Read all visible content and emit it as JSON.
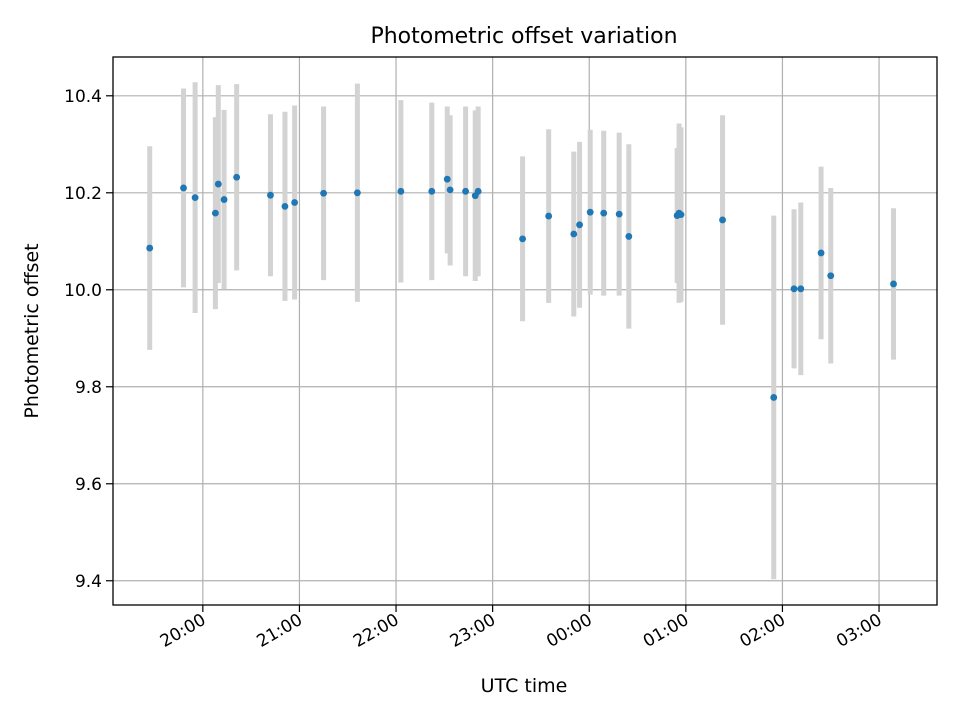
{
  "chart_data": {
    "type": "scatter",
    "title": "Photometric offset variation",
    "xlabel": "UTC time",
    "ylabel": "Photometric offset",
    "x_unit": "UTC time (hours, continuing past midnight)",
    "xlim": [
      19.07,
      27.6
    ],
    "ylim": [
      9.35,
      10.48
    ],
    "grid": true,
    "x_ticks": [
      {
        "value": 20,
        "label": "20:00"
      },
      {
        "value": 21,
        "label": "21:00"
      },
      {
        "value": 22,
        "label": "22:00"
      },
      {
        "value": 23,
        "label": "23:00"
      },
      {
        "value": 24,
        "label": "00:00"
      },
      {
        "value": 25,
        "label": "01:00"
      },
      {
        "value": 26,
        "label": "02:00"
      },
      {
        "value": 27,
        "label": "03:00"
      }
    ],
    "y_ticks": [
      {
        "value": 9.4,
        "label": "9.4"
      },
      {
        "value": 9.6,
        "label": "9.6"
      },
      {
        "value": 9.8,
        "label": "9.8"
      },
      {
        "value": 10.0,
        "label": "10.0"
      },
      {
        "value": 10.2,
        "label": "10.2"
      },
      {
        "value": 10.4,
        "label": "10.4"
      }
    ],
    "colors": {
      "point": "#1f77b4",
      "errorbar": "#d3d3d3",
      "grid": "#b0b0b0"
    },
    "points": [
      {
        "x": 19.45,
        "y": 10.086,
        "lo": 9.876,
        "hi": 10.296
      },
      {
        "x": 19.8,
        "y": 10.21,
        "lo": 10.005,
        "hi": 10.415
      },
      {
        "x": 19.92,
        "y": 10.19,
        "lo": 9.952,
        "hi": 10.428
      },
      {
        "x": 20.13,
        "y": 10.158,
        "lo": 9.96,
        "hi": 10.356
      },
      {
        "x": 20.16,
        "y": 10.218,
        "lo": 10.014,
        "hi": 10.422
      },
      {
        "x": 20.22,
        "y": 10.186,
        "lo": 10.001,
        "hi": 10.371
      },
      {
        "x": 20.35,
        "y": 10.232,
        "lo": 10.04,
        "hi": 10.424
      },
      {
        "x": 20.7,
        "y": 10.195,
        "lo": 10.028,
        "hi": 10.362
      },
      {
        "x": 20.85,
        "y": 10.172,
        "lo": 9.977,
        "hi": 10.367
      },
      {
        "x": 20.95,
        "y": 10.18,
        "lo": 9.98,
        "hi": 10.38
      },
      {
        "x": 21.25,
        "y": 10.199,
        "lo": 10.02,
        "hi": 10.378
      },
      {
        "x": 21.6,
        "y": 10.2,
        "lo": 9.975,
        "hi": 10.425
      },
      {
        "x": 22.05,
        "y": 10.203,
        "lo": 10.015,
        "hi": 10.391
      },
      {
        "x": 22.37,
        "y": 10.203,
        "lo": 10.02,
        "hi": 10.386
      },
      {
        "x": 22.53,
        "y": 10.228,
        "lo": 10.075,
        "hi": 10.378
      },
      {
        "x": 22.56,
        "y": 10.206,
        "lo": 10.05,
        "hi": 10.36
      },
      {
        "x": 22.72,
        "y": 10.203,
        "lo": 10.028,
        "hi": 10.378
      },
      {
        "x": 22.82,
        "y": 10.194,
        "lo": 10.018,
        "hi": 10.37
      },
      {
        "x": 22.85,
        "y": 10.203,
        "lo": 10.028,
        "hi": 10.378
      },
      {
        "x": 23.31,
        "y": 10.105,
        "lo": 9.935,
        "hi": 10.275
      },
      {
        "x": 23.58,
        "y": 10.152,
        "lo": 9.973,
        "hi": 10.331
      },
      {
        "x": 23.84,
        "y": 10.115,
        "lo": 9.945,
        "hi": 10.285
      },
      {
        "x": 23.9,
        "y": 10.134,
        "lo": 9.963,
        "hi": 10.305
      },
      {
        "x": 24.01,
        "y": 10.16,
        "lo": 9.99,
        "hi": 10.33
      },
      {
        "x": 24.15,
        "y": 10.158,
        "lo": 9.988,
        "hi": 10.328
      },
      {
        "x": 24.31,
        "y": 10.156,
        "lo": 9.988,
        "hi": 10.324
      },
      {
        "x": 24.41,
        "y": 10.11,
        "lo": 9.92,
        "hi": 10.3
      },
      {
        "x": 24.91,
        "y": 10.153,
        "lo": 10.014,
        "hi": 10.292
      },
      {
        "x": 24.93,
        "y": 10.158,
        "lo": 9.973,
        "hi": 10.343
      },
      {
        "x": 24.95,
        "y": 10.155,
        "lo": 9.975,
        "hi": 10.335
      },
      {
        "x": 25.38,
        "y": 10.144,
        "lo": 9.928,
        "hi": 10.36
      },
      {
        "x": 25.91,
        "y": 9.778,
        "lo": 9.403,
        "hi": 10.153
      },
      {
        "x": 26.12,
        "y": 10.002,
        "lo": 9.838,
        "hi": 10.166
      },
      {
        "x": 26.19,
        "y": 10.002,
        "lo": 9.824,
        "hi": 10.18
      },
      {
        "x": 26.4,
        "y": 10.076,
        "lo": 9.898,
        "hi": 10.254
      },
      {
        "x": 26.5,
        "y": 10.029,
        "lo": 9.848,
        "hi": 10.21
      },
      {
        "x": 27.15,
        "y": 10.012,
        "lo": 9.856,
        "hi": 10.168
      }
    ]
  }
}
